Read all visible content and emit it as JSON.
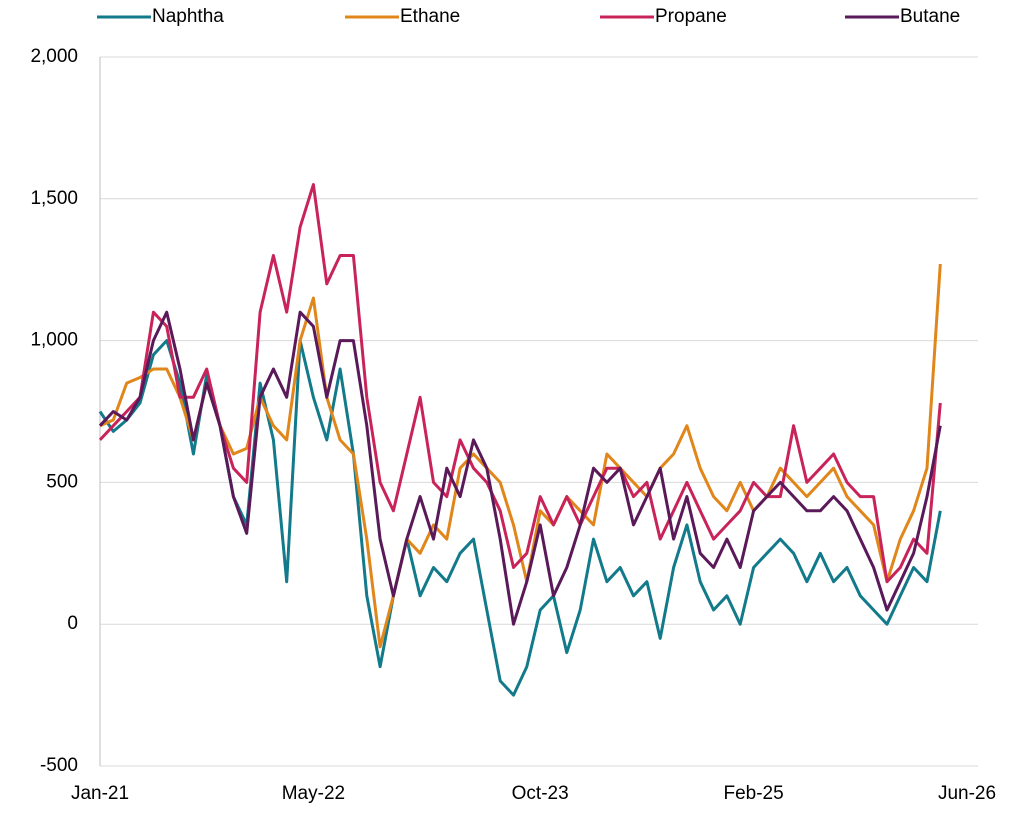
{
  "chart_data": {
    "type": "line",
    "x": [
      "2021-01",
      "2021-02",
      "2021-03",
      "2021-04",
      "2021-05",
      "2021-06",
      "2021-07",
      "2021-08",
      "2021-09",
      "2021-10",
      "2021-11",
      "2021-12",
      "2022-01",
      "2022-02",
      "2022-03",
      "2022-04",
      "2022-05",
      "2022-06",
      "2022-07",
      "2022-08",
      "2022-09",
      "2022-10",
      "2022-11",
      "2022-12",
      "2023-01",
      "2023-02",
      "2023-03",
      "2023-04",
      "2023-05",
      "2023-06",
      "2023-07",
      "2023-08",
      "2023-09",
      "2023-10",
      "2023-11",
      "2023-12",
      "2024-01",
      "2024-02",
      "2024-03",
      "2024-04",
      "2024-05",
      "2024-06",
      "2024-07",
      "2024-08",
      "2024-09",
      "2024-10",
      "2024-11",
      "2024-12",
      "2025-01",
      "2025-02",
      "2025-03",
      "2025-04",
      "2025-05",
      "2025-06",
      "2025-07",
      "2025-08",
      "2025-09",
      "2025-10",
      "2025-11",
      "2025-12",
      "2026-01",
      "2026-02",
      "2026-03",
      "2026-04"
    ],
    "series": [
      {
        "name": "Naphtha",
        "color": "#127a8a",
        "values": [
          750,
          680,
          720,
          780,
          950,
          1000,
          850,
          600,
          880,
          700,
          450,
          350,
          850,
          650,
          150,
          1000,
          800,
          650,
          900,
          600,
          100,
          -150,
          100,
          300,
          100,
          200,
          150,
          250,
          300,
          50,
          -200,
          -250,
          -150,
          50,
          100,
          -100,
          50,
          300,
          150,
          200,
          100,
          150,
          -50,
          200,
          350,
          150,
          50,
          100,
          0,
          200,
          250,
          300,
          250,
          150,
          250,
          150,
          200,
          100,
          50,
          0,
          100,
          200,
          150,
          400
        ]
      },
      {
        "name": "Ethane",
        "color": "#e0861a",
        "values": [
          700,
          720,
          850,
          870,
          900,
          900,
          800,
          650,
          850,
          700,
          600,
          620,
          800,
          700,
          650,
          1000,
          1150,
          800,
          650,
          600,
          300,
          -80,
          100,
          300,
          250,
          350,
          300,
          550,
          600,
          550,
          500,
          350,
          150,
          400,
          350,
          450,
          400,
          350,
          600,
          550,
          500,
          450,
          550,
          600,
          700,
          550,
          450,
          400,
          500,
          400,
          450,
          550,
          500,
          450,
          500,
          550,
          450,
          400,
          350,
          150,
          300,
          400,
          550,
          1270
        ]
      },
      {
        "name": "Propane",
        "color": "#c8245a",
        "values": [
          650,
          700,
          750,
          800,
          1100,
          1050,
          800,
          800,
          900,
          700,
          550,
          500,
          1100,
          1300,
          1100,
          1400,
          1550,
          1200,
          1300,
          1300,
          800,
          500,
          400,
          600,
          800,
          500,
          450,
          650,
          550,
          500,
          400,
          200,
          250,
          450,
          350,
          450,
          350,
          450,
          550,
          550,
          450,
          500,
          300,
          400,
          500,
          400,
          300,
          350,
          400,
          500,
          450,
          450,
          700,
          500,
          550,
          600,
          500,
          450,
          450,
          150,
          200,
          300,
          250,
          780
        ]
      },
      {
        "name": "Butane",
        "color": "#5a1a5a",
        "values": [
          700,
          750,
          720,
          800,
          1000,
          1100,
          900,
          650,
          850,
          700,
          450,
          320,
          800,
          900,
          800,
          1100,
          1050,
          800,
          1000,
          1000,
          700,
          300,
          100,
          300,
          450,
          300,
          550,
          450,
          650,
          550,
          300,
          0,
          150,
          350,
          100,
          200,
          350,
          550,
          500,
          550,
          350,
          450,
          550,
          300,
          450,
          250,
          200,
          300,
          200,
          400,
          450,
          500,
          450,
          400,
          400,
          450,
          400,
          300,
          200,
          50,
          150,
          250,
          450,
          700
        ]
      }
    ],
    "xlim": [
      "2021-01",
      "2026-06"
    ],
    "xticks": [
      {
        "value": "2021-01",
        "label": "Jan-21"
      },
      {
        "value": "2022-05",
        "label": "May-22"
      },
      {
        "value": "2023-10",
        "label": "Oct-23"
      },
      {
        "value": "2025-02",
        "label": "Feb-25"
      },
      {
        "value": "2026-06",
        "label": "Jun-26"
      }
    ],
    "ylim": [
      -500,
      2000
    ],
    "yticks": [
      -500,
      0,
      500,
      {
        "value": 1000,
        "label": "1,000"
      },
      {
        "value": 1500,
        "label": "1,500"
      },
      {
        "value": 2000,
        "label": "2,000"
      }
    ],
    "grid": true,
    "legend": "top"
  }
}
